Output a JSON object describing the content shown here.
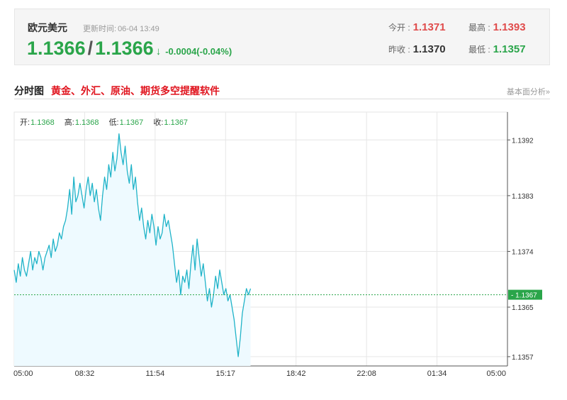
{
  "quote": {
    "name": "欧元美元",
    "update_label": "更新时间:",
    "update_time": "06-04 13:49",
    "bid": "1.1366",
    "ask": "1.1366",
    "separator": "/",
    "direction_arrow": "↓",
    "change": "-0.0004(-0.04%)",
    "open_label": "今开 :",
    "open": "1.1371",
    "prev_close_label": "昨收 :",
    "prev_close": "1.1370",
    "high_label": "最高 :",
    "high": "1.1393",
    "low_label": "最低 :",
    "low": "1.1357"
  },
  "section": {
    "title": "分时图",
    "promo_link": "黄金、外汇、原油、期货多空提醒软件",
    "more_link": "基本面分析»"
  },
  "ohlc": {
    "open_label": "开:",
    "open": "1.1368",
    "high_label": "高:",
    "high": "1.1368",
    "low_label": "低:",
    "low": "1.1367",
    "close_label": "收:",
    "close": "1.1367"
  },
  "colors": {
    "up": "#e04b4b",
    "down": "#2aa54a",
    "line": "#1fb3c8",
    "fill": "#eefaff",
    "grid": "#e6e6e6",
    "current_tag": "#2aa54a"
  },
  "chart_data": {
    "type": "line",
    "x_ticks": [
      "05:00",
      "08:32",
      "11:54",
      "15:17",
      "18:42",
      "22:08",
      "01:34",
      "05:00"
    ],
    "y_ticks": [
      1.1392,
      1.1383,
      1.1374,
      1.1365,
      1.1357
    ],
    "ylim": [
      1.13555,
      1.13965
    ],
    "current_value": "1.1367",
    "grid": true,
    "x_unit": "minutes since session start (05:00)",
    "series": [
      {
        "x": [
          0,
          6,
          12,
          18,
          24,
          30,
          36,
          42,
          48,
          54,
          60,
          66,
          72,
          78,
          84,
          90,
          96,
          102,
          108,
          114,
          120,
          126,
          132,
          138,
          144,
          150,
          156,
          162,
          168,
          174,
          180,
          186,
          192,
          198,
          204,
          210,
          216,
          222,
          228,
          234,
          240,
          246,
          252,
          258,
          264,
          270,
          276,
          282,
          288,
          294,
          300,
          306,
          312,
          318,
          324,
          330,
          336,
          342,
          348,
          354,
          360,
          366,
          372,
          378,
          384,
          390,
          396,
          402,
          408,
          414,
          420,
          426,
          432,
          438,
          444,
          450,
          456,
          462,
          468,
          474,
          480,
          486,
          492,
          498,
          504,
          510,
          516,
          522,
          528,
          534,
          540,
          546,
          552,
          558,
          564,
          570,
          576,
          582,
          588,
          594,
          600,
          606,
          612,
          618,
          624,
          630,
          636,
          642,
          648,
          654,
          660,
          666,
          672,
          678,
          684,
          690
        ],
        "values": [
          1.1371,
          1.1369,
          1.1372,
          1.137,
          1.1373,
          1.1371,
          1.137,
          1.1372,
          1.1374,
          1.1371,
          1.1373,
          1.1372,
          1.1374,
          1.1373,
          1.1371,
          1.1373,
          1.1374,
          1.1375,
          1.1373,
          1.1376,
          1.1374,
          1.1375,
          1.1377,
          1.1376,
          1.1378,
          1.1379,
          1.1381,
          1.1384,
          1.138,
          1.1386,
          1.1382,
          1.1383,
          1.1385,
          1.1383,
          1.1381,
          1.1384,
          1.1386,
          1.1383,
          1.1385,
          1.1382,
          1.1384,
          1.1381,
          1.1379,
          1.1383,
          1.1386,
          1.1384,
          1.1388,
          1.1386,
          1.139,
          1.1387,
          1.1389,
          1.1393,
          1.139,
          1.1388,
          1.1391,
          1.1387,
          1.1385,
          1.1388,
          1.1384,
          1.1386,
          1.1382,
          1.1379,
          1.1381,
          1.1378,
          1.1376,
          1.1379,
          1.1377,
          1.138,
          1.1378,
          1.1375,
          1.1378,
          1.1376,
          1.1377,
          1.138,
          1.1378,
          1.1379,
          1.1377,
          1.1375,
          1.1372,
          1.1369,
          1.1371,
          1.1367,
          1.137,
          1.1369,
          1.1371,
          1.1368,
          1.1372,
          1.1375,
          1.1371,
          1.1376,
          1.1373,
          1.137,
          1.1372,
          1.1369,
          1.1366,
          1.1368,
          1.1365,
          1.1367,
          1.137,
          1.1368,
          1.1371,
          1.1369,
          1.1367,
          1.1368,
          1.1366,
          1.1367,
          1.1365,
          1.1363,
          1.136,
          1.1357,
          1.136,
          1.1364,
          1.1366,
          1.1368,
          1.1367,
          1.1368
        ]
      }
    ]
  }
}
